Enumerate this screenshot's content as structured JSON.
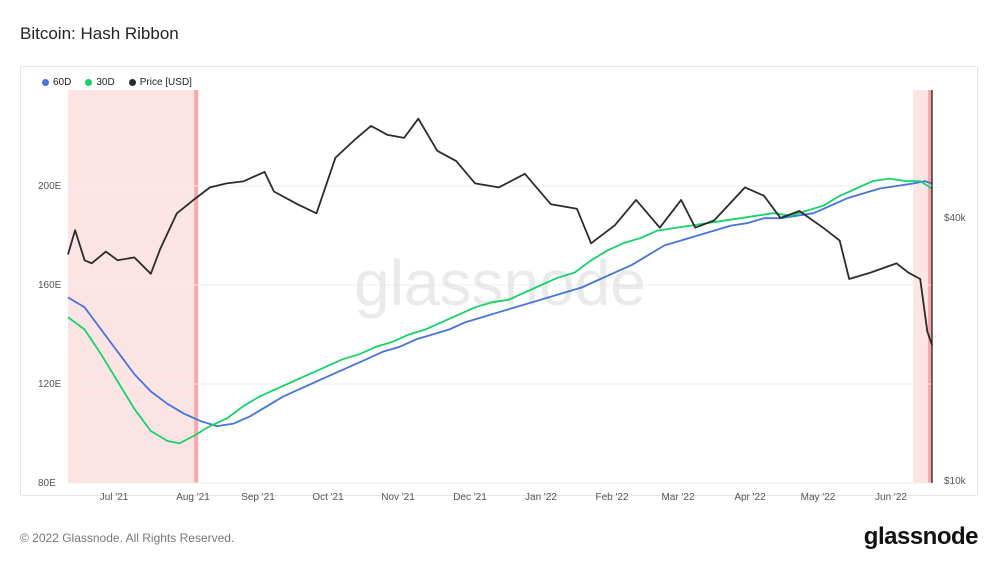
{
  "title": "Bitcoin: Hash Ribbon",
  "footer": {
    "copyright": "© 2022 Glassnode. All Rights Reserved.",
    "brand": "glassnode"
  },
  "watermark": "glassnode",
  "legend": [
    {
      "key": "s60",
      "label": "60D",
      "color": "#4573e0"
    },
    {
      "key": "s30",
      "label": "30D",
      "color": "#17d26a"
    },
    {
      "key": "price",
      "label": "Price [USD]",
      "color": "#2b2b2b"
    }
  ],
  "chart_data": {
    "type": "line",
    "x_ticks": [
      "Jul '21",
      "Aug '21",
      "Sep '21",
      "Oct '21",
      "Nov '21",
      "Dec '21",
      "Jan '22",
      "Feb '22",
      "Mar '22",
      "Apr '22",
      "May '22",
      "Jun '22"
    ],
    "y_left": {
      "ticks": [
        "80E",
        "120E",
        "160E",
        "200E"
      ],
      "values": [
        80,
        120,
        160,
        200
      ],
      "range": [
        80,
        200
      ]
    },
    "y_right": {
      "ticks": [
        "$10k",
        "$40k"
      ],
      "values": [
        10000,
        40000
      ],
      "scale": "log"
    },
    "highlight_regions": [
      {
        "from": "2021-06-15",
        "to": "2021-08-09"
      },
      {
        "from": "2022-06-07",
        "to": "2022-06-15"
      }
    ],
    "cursor_date": "2022-06-15",
    "series": [
      {
        "name": "60D",
        "axis": "left",
        "points": [
          [
            "2021-06-15",
            155
          ],
          [
            "2021-06-22",
            151
          ],
          [
            "2021-06-29",
            142
          ],
          [
            "2021-07-06",
            133
          ],
          [
            "2021-07-13",
            124
          ],
          [
            "2021-07-20",
            117
          ],
          [
            "2021-07-27",
            112
          ],
          [
            "2021-08-03",
            108
          ],
          [
            "2021-08-10",
            105
          ],
          [
            "2021-08-17",
            103
          ],
          [
            "2021-08-24",
            104
          ],
          [
            "2021-08-31",
            107
          ],
          [
            "2021-09-07",
            111
          ],
          [
            "2021-09-14",
            115
          ],
          [
            "2021-09-21",
            118
          ],
          [
            "2021-09-28",
            121
          ],
          [
            "2021-10-05",
            124
          ],
          [
            "2021-10-12",
            127
          ],
          [
            "2021-10-19",
            130
          ],
          [
            "2021-10-26",
            133
          ],
          [
            "2021-11-02",
            135
          ],
          [
            "2021-11-09",
            138
          ],
          [
            "2021-11-16",
            140
          ],
          [
            "2021-11-23",
            142
          ],
          [
            "2021-11-30",
            145
          ],
          [
            "2021-12-07",
            147
          ],
          [
            "2021-12-14",
            149
          ],
          [
            "2021-12-21",
            151
          ],
          [
            "2021-12-28",
            153
          ],
          [
            "2022-01-04",
            155
          ],
          [
            "2022-01-11",
            157
          ],
          [
            "2022-01-18",
            159
          ],
          [
            "2022-01-25",
            162
          ],
          [
            "2022-02-01",
            165
          ],
          [
            "2022-02-08",
            168
          ],
          [
            "2022-02-15",
            172
          ],
          [
            "2022-02-22",
            176
          ],
          [
            "2022-03-01",
            178
          ],
          [
            "2022-03-08",
            180
          ],
          [
            "2022-03-15",
            182
          ],
          [
            "2022-03-22",
            184
          ],
          [
            "2022-03-29",
            185
          ],
          [
            "2022-04-05",
            187
          ],
          [
            "2022-04-12",
            187
          ],
          [
            "2022-04-19",
            188
          ],
          [
            "2022-04-26",
            189
          ],
          [
            "2022-05-03",
            192
          ],
          [
            "2022-05-10",
            195
          ],
          [
            "2022-05-17",
            197
          ],
          [
            "2022-05-24",
            199
          ],
          [
            "2022-05-31",
            200
          ],
          [
            "2022-06-07",
            201
          ],
          [
            "2022-06-12",
            202
          ],
          [
            "2022-06-15",
            201
          ]
        ]
      },
      {
        "name": "30D",
        "axis": "left",
        "points": [
          [
            "2021-06-15",
            147
          ],
          [
            "2021-06-22",
            142
          ],
          [
            "2021-06-29",
            132
          ],
          [
            "2021-07-06",
            121
          ],
          [
            "2021-07-13",
            110
          ],
          [
            "2021-07-20",
            101
          ],
          [
            "2021-07-27",
            97
          ],
          [
            "2021-08-01",
            96
          ],
          [
            "2021-08-07",
            99
          ],
          [
            "2021-08-14",
            103
          ],
          [
            "2021-08-21",
            106
          ],
          [
            "2021-08-28",
            111
          ],
          [
            "2021-09-04",
            115
          ],
          [
            "2021-09-11",
            118
          ],
          [
            "2021-09-18",
            121
          ],
          [
            "2021-09-25",
            124
          ],
          [
            "2021-10-02",
            127
          ],
          [
            "2021-10-09",
            130
          ],
          [
            "2021-10-16",
            132
          ],
          [
            "2021-10-23",
            135
          ],
          [
            "2021-10-30",
            137
          ],
          [
            "2021-11-06",
            140
          ],
          [
            "2021-11-13",
            142
          ],
          [
            "2021-11-20",
            145
          ],
          [
            "2021-11-27",
            148
          ],
          [
            "2021-12-04",
            151
          ],
          [
            "2021-12-11",
            153
          ],
          [
            "2021-12-18",
            154
          ],
          [
            "2021-12-25",
            157
          ],
          [
            "2022-01-01",
            160
          ],
          [
            "2022-01-08",
            163
          ],
          [
            "2022-01-15",
            165
          ],
          [
            "2022-01-22",
            170
          ],
          [
            "2022-01-29",
            174
          ],
          [
            "2022-02-05",
            177
          ],
          [
            "2022-02-12",
            179
          ],
          [
            "2022-02-19",
            182
          ],
          [
            "2022-02-26",
            183
          ],
          [
            "2022-03-05",
            184
          ],
          [
            "2022-03-12",
            185
          ],
          [
            "2022-03-19",
            186
          ],
          [
            "2022-03-26",
            187
          ],
          [
            "2022-04-02",
            188
          ],
          [
            "2022-04-09",
            189
          ],
          [
            "2022-04-16",
            188
          ],
          [
            "2022-04-23",
            190
          ],
          [
            "2022-04-30",
            192
          ],
          [
            "2022-05-07",
            196
          ],
          [
            "2022-05-14",
            199
          ],
          [
            "2022-05-21",
            202
          ],
          [
            "2022-05-28",
            203
          ],
          [
            "2022-06-04",
            202
          ],
          [
            "2022-06-10",
            202
          ],
          [
            "2022-06-15",
            199
          ]
        ]
      },
      {
        "name": "Price [USD]",
        "axis": "right",
        "points": [
          [
            "2021-06-15",
            33000
          ],
          [
            "2021-06-18",
            37500
          ],
          [
            "2021-06-22",
            32000
          ],
          [
            "2021-06-25",
            31500
          ],
          [
            "2021-07-01",
            33500
          ],
          [
            "2021-07-06",
            32000
          ],
          [
            "2021-07-13",
            32500
          ],
          [
            "2021-07-20",
            29800
          ],
          [
            "2021-07-24",
            34000
          ],
          [
            "2021-07-31",
            41000
          ],
          [
            "2021-08-07",
            44000
          ],
          [
            "2021-08-14",
            47000
          ],
          [
            "2021-08-21",
            48000
          ],
          [
            "2021-08-28",
            48500
          ],
          [
            "2021-09-06",
            51000
          ],
          [
            "2021-09-10",
            46000
          ],
          [
            "2021-09-20",
            43000
          ],
          [
            "2021-09-28",
            41000
          ],
          [
            "2021-10-06",
            55000
          ],
          [
            "2021-10-15",
            61000
          ],
          [
            "2021-10-21",
            65000
          ],
          [
            "2021-10-28",
            62000
          ],
          [
            "2021-11-04",
            61000
          ],
          [
            "2021-11-10",
            67500
          ],
          [
            "2021-11-18",
            57000
          ],
          [
            "2021-11-26",
            54000
          ],
          [
            "2021-12-04",
            48000
          ],
          [
            "2021-12-14",
            47000
          ],
          [
            "2021-12-25",
            50500
          ],
          [
            "2022-01-05",
            43000
          ],
          [
            "2022-01-16",
            42000
          ],
          [
            "2022-01-22",
            35000
          ],
          [
            "2022-02-01",
            38500
          ],
          [
            "2022-02-10",
            44000
          ],
          [
            "2022-02-20",
            38000
          ],
          [
            "2022-03-01",
            44000
          ],
          [
            "2022-03-07",
            38000
          ],
          [
            "2022-03-15",
            39500
          ],
          [
            "2022-03-28",
            47000
          ],
          [
            "2022-04-05",
            45000
          ],
          [
            "2022-04-12",
            40000
          ],
          [
            "2022-04-20",
            41500
          ],
          [
            "2022-04-30",
            38000
          ],
          [
            "2022-05-07",
            35500
          ],
          [
            "2022-05-11",
            29000
          ],
          [
            "2022-05-20",
            30000
          ],
          [
            "2022-05-31",
            31500
          ],
          [
            "2022-06-05",
            30000
          ],
          [
            "2022-06-10",
            29000
          ],
          [
            "2022-06-13",
            22000
          ],
          [
            "2022-06-15",
            20500
          ]
        ]
      }
    ]
  }
}
